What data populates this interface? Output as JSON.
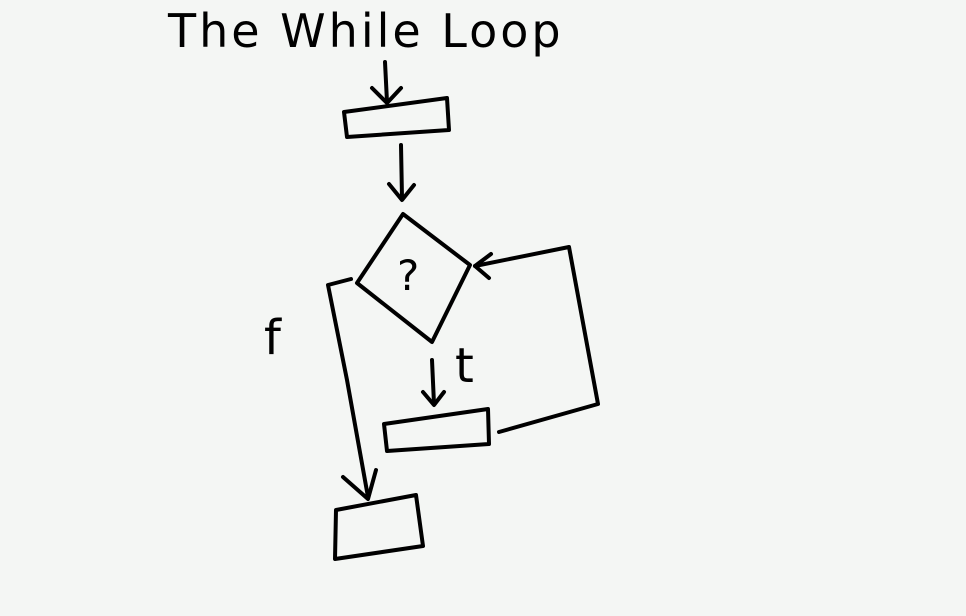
{
  "diagram": {
    "title": "The While Loop",
    "decision_label": "?",
    "true_label": "t",
    "false_label": "f"
  },
  "colors": {
    "background": "#f4f6f4",
    "ink": "#000000"
  }
}
